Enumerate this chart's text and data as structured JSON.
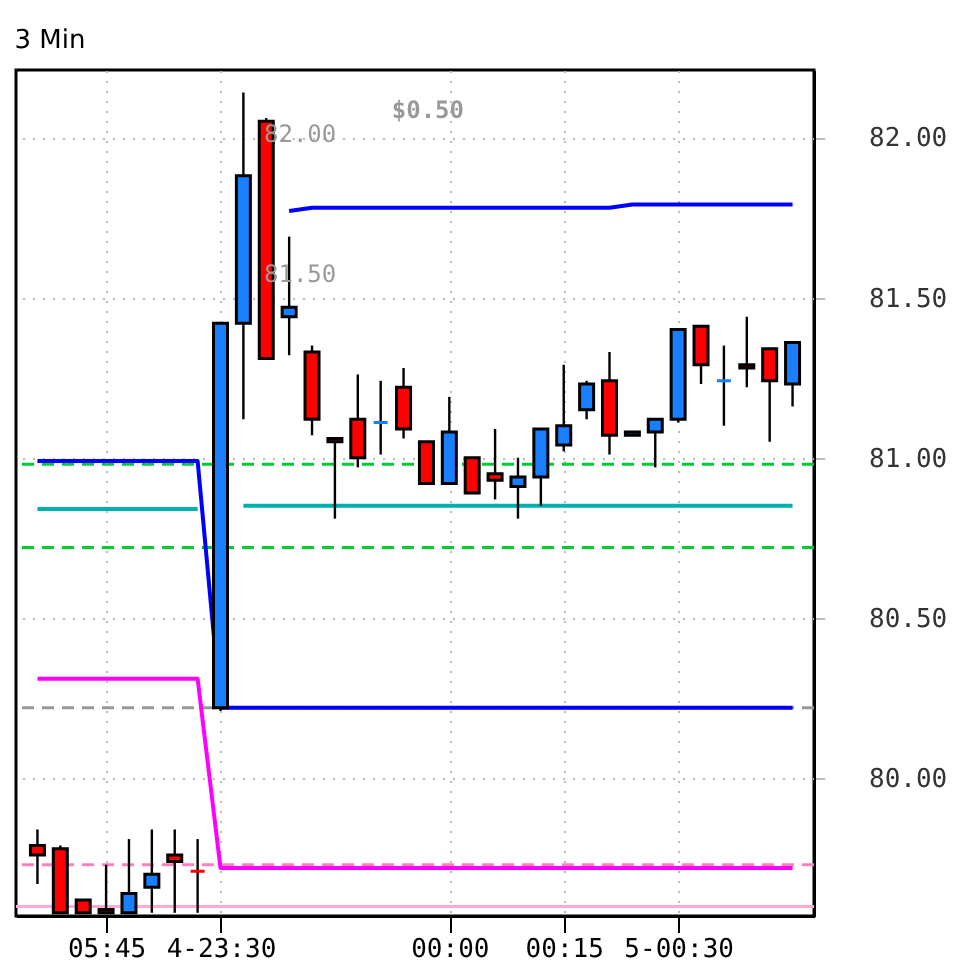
{
  "chart_data": {
    "type": "candlestick",
    "title": "3 Min",
    "categories": [
      null,
      null,
      null,
      "05:45",
      null,
      null,
      null,
      null,
      "4-23:30",
      null,
      null,
      null,
      null,
      null,
      null,
      null,
      null,
      null,
      "00:00",
      null,
      null,
      null,
      null,
      "00:15",
      null,
      null,
      null,
      null,
      "5-00:30",
      null,
      null,
      null,
      null,
      null
    ],
    "ohlc": [
      [
        79.79,
        79.84,
        79.67,
        79.76
      ],
      [
        79.78,
        79.79,
        79.58,
        79.58
      ],
      [
        79.62,
        79.62,
        79.58,
        79.58
      ],
      [
        79.59,
        79.73,
        79.58,
        79.58
      ],
      [
        79.58,
        79.81,
        79.58,
        79.64
      ],
      [
        79.66,
        79.84,
        79.58,
        79.7
      ],
      [
        79.76,
        79.84,
        79.58,
        79.74
      ],
      [
        79.71,
        79.81,
        79.58,
        79.71
      ],
      [
        80.22,
        81.42,
        80.21,
        81.42
      ],
      [
        81.42,
        82.14,
        81.12,
        81.88
      ],
      [
        82.05,
        82.06,
        81.31,
        81.31
      ],
      [
        81.44,
        81.69,
        81.32,
        81.47
      ],
      [
        81.33,
        81.35,
        81.07,
        81.12
      ],
      [
        81.06,
        81.06,
        80.81,
        81.05
      ],
      [
        81.12,
        81.26,
        80.97,
        81.0
      ],
      [
        81.11,
        81.24,
        81.01,
        81.11
      ],
      [
        81.22,
        81.28,
        81.06,
        81.09
      ],
      [
        81.05,
        81.05,
        80.92,
        80.92
      ],
      [
        80.92,
        81.19,
        80.92,
        81.08
      ],
      [
        81.0,
        81.0,
        80.89,
        80.89
      ],
      [
        80.95,
        81.09,
        80.87,
        80.93
      ],
      [
        80.91,
        81.0,
        80.81,
        80.94
      ],
      [
        80.94,
        81.09,
        80.85,
        81.09
      ],
      [
        81.04,
        81.29,
        81.02,
        81.1
      ],
      [
        81.15,
        81.24,
        81.12,
        81.23
      ],
      [
        81.24,
        81.33,
        81.01,
        81.07
      ],
      [
        81.07,
        81.08,
        81.07,
        81.08
      ],
      [
        81.08,
        81.12,
        80.97,
        81.12
      ],
      [
        81.12,
        81.4,
        81.11,
        81.4
      ],
      [
        81.41,
        81.41,
        81.23,
        81.29
      ],
      [
        81.24,
        81.35,
        81.1,
        81.24
      ],
      [
        81.29,
        81.44,
        81.22,
        81.28
      ],
      [
        81.34,
        81.34,
        81.05,
        81.24
      ],
      [
        81.23,
        81.36,
        81.16,
        81.36
      ]
    ],
    "colors": [
      "#ff0000",
      "#ff0000",
      "#ff0000",
      "#ff0000",
      "#1a7fff",
      "#1a7fff",
      "#ff0000",
      "#ff0000",
      "#1a7fff",
      "#1a7fff",
      "#ff0000",
      "#1a7fff",
      "#ff0000",
      "#ff0000",
      "#ff0000",
      "#1a7fff",
      "#ff0000",
      "#ff0000",
      "#1a7fff",
      "#ff0000",
      "#ff0000",
      "#1a7fff",
      "#1a7fff",
      "#1a7fff",
      "#1a7fff",
      "#ff0000",
      "#1a7fff",
      "#1a7fff",
      "#1a7fff",
      "#ff0000",
      "#1a7fff",
      "#ff0000",
      "#ff0000",
      "#1a7fff"
    ],
    "series": [
      {
        "type": "line",
        "color": "#00b0b0",
        "values": [
          80.84,
          80.84,
          80.84,
          80.84,
          80.84,
          80.84,
          80.84,
          80.84,
          null,
          80.85,
          80.85,
          80.85,
          80.85,
          80.85,
          80.85,
          80.85,
          80.85,
          80.85,
          80.85,
          80.85,
          80.85,
          80.85,
          80.85,
          80.85,
          80.85,
          80.85,
          80.85,
          80.85,
          80.85,
          80.85,
          80.85,
          80.85,
          80.85,
          80.85
        ]
      },
      {
        "type": "line",
        "color": "#0000ff",
        "values": [
          80.99,
          80.99,
          80.99,
          80.99,
          80.99,
          80.99,
          80.99,
          80.99,
          80.22,
          80.22,
          80.22,
          80.22,
          80.22,
          80.22,
          80.22,
          80.22,
          80.22,
          80.22,
          80.22,
          80.22,
          80.22,
          80.22,
          80.22,
          80.22,
          80.22,
          80.22,
          80.22,
          80.22,
          80.22,
          80.22,
          80.22,
          80.22,
          80.22,
          80.22
        ]
      },
      {
        "type": "line",
        "color": "#0000ff",
        "values": [
          null,
          null,
          null,
          null,
          null,
          null,
          null,
          null,
          null,
          null,
          null,
          81.77,
          81.78,
          81.78,
          81.78,
          81.78,
          81.78,
          81.78,
          81.78,
          81.78,
          81.78,
          81.78,
          81.78,
          81.78,
          81.78,
          81.78,
          81.79,
          81.79,
          81.79,
          81.79,
          81.79,
          81.79,
          81.79,
          81.79
        ]
      },
      {
        "type": "line",
        "color": "#ff00ff",
        "values": [
          80.31,
          80.31,
          80.31,
          80.31,
          80.31,
          80.31,
          80.31,
          80.31,
          79.72,
          79.72,
          79.72,
          79.72,
          79.72,
          79.72,
          79.72,
          79.72,
          79.72,
          79.72,
          79.72,
          79.72,
          79.72,
          79.72,
          79.72,
          79.72,
          79.72,
          79.72,
          79.72,
          79.72,
          79.72,
          79.72,
          79.72,
          79.72,
          79.72,
          79.72
        ]
      }
    ],
    "ref_lines": [
      {
        "axis": "y",
        "value": 80.98,
        "color": "#00cc33",
        "line_style": "dashed"
      },
      {
        "axis": "y",
        "value": 80.72,
        "color": "#00cc33",
        "line_style": "dashed"
      },
      {
        "axis": "y",
        "value": 80.22,
        "color": "#999999",
        "line_style": "dashed"
      },
      {
        "axis": "y",
        "value": 79.73,
        "color": "#ff80c0",
        "line_style": "dashed"
      },
      {
        "axis": "y",
        "value": 79.6,
        "color": "#ffaad4",
        "line_style": "solid"
      }
    ],
    "annotations": [
      "$0.50",
      "82.00",
      "81.50"
    ],
    "ylim": [
      79.57,
      82.21
    ],
    "yticks": [
      {
        "value": 82,
        "label": "82.00"
      },
      {
        "value": 81.5,
        "label": "81.50"
      },
      {
        "value": 81,
        "label": "81.00"
      },
      {
        "value": 80.5,
        "label": "80.50"
      },
      {
        "value": 80,
        "label": "80.00"
      }
    ],
    "grid": true
  }
}
